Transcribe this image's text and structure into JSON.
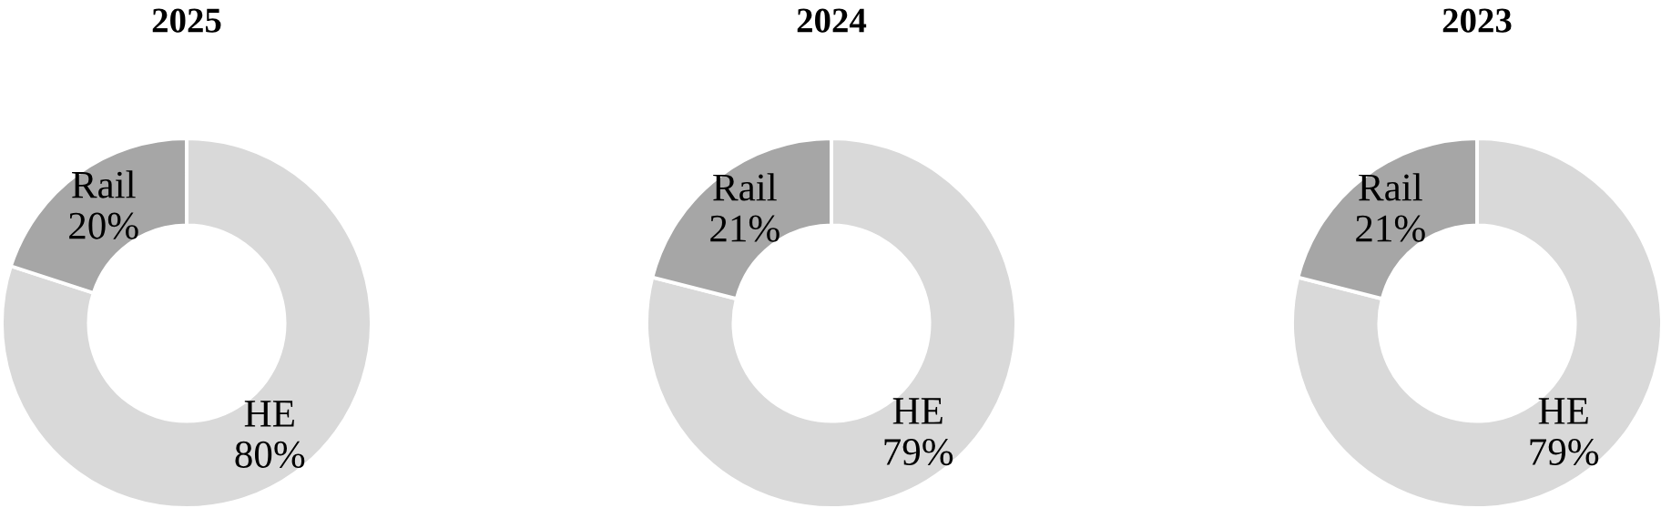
{
  "chart_data": [
    {
      "type": "donut",
      "title": "2025",
      "categories": [
        "HE",
        "Rail"
      ],
      "values": [
        80,
        20
      ],
      "value_labels": [
        "80%",
        "20%"
      ],
      "colors": [
        "#d9d9d9",
        "#a6a6a6"
      ]
    },
    {
      "type": "donut",
      "title": "2024",
      "categories": [
        "HE",
        "Rail"
      ],
      "values": [
        79,
        21
      ],
      "value_labels": [
        "79%",
        "21%"
      ],
      "colors": [
        "#d9d9d9",
        "#a6a6a6"
      ]
    },
    {
      "type": "donut",
      "title": "2023",
      "categories": [
        "HE",
        "Rail"
      ],
      "values": [
        79,
        21
      ],
      "value_labels": [
        "79%",
        "21%"
      ],
      "colors": [
        "#d9d9d9",
        "#a6a6a6"
      ]
    }
  ]
}
